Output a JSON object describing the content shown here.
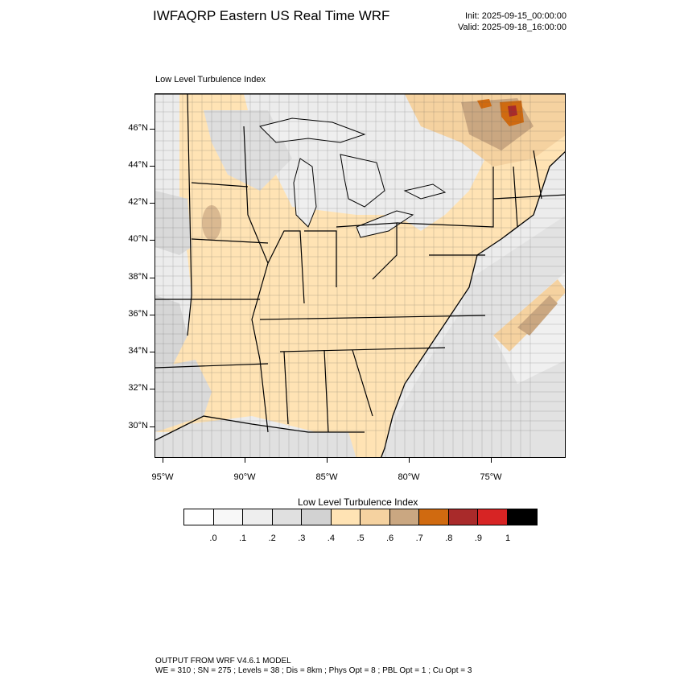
{
  "header": {
    "title": "IWFAQRP Eastern US Real Time WRF",
    "init": "Init: 2025-09-15_00:00:00",
    "valid": "Valid: 2025-09-18_16:00:00"
  },
  "map": {
    "title": "Low Level Turbulence Index",
    "lat_labels": [
      "46°N",
      "44°N",
      "42°N",
      "40°N",
      "38°N",
      "36°N",
      "34°N",
      "32°N",
      "30°N"
    ],
    "lon_labels": [
      "95°W",
      "90°W",
      "85°W",
      "80°W",
      "75°W"
    ]
  },
  "colorbar": {
    "title": "Low Level Turbulence Index",
    "colors": [
      "#ffffff",
      "#f8f8f8",
      "#eeeeee",
      "#e0e0e0",
      "#d2d2d2",
      "#ffe3b4",
      "#f5d2a0",
      "#caa781",
      "#d06a10",
      "#a92a2a",
      "#d72424",
      "#000000"
    ],
    "labels": [
      ".0",
      ".1",
      ".2",
      ".3",
      ".4",
      ".5",
      ".6",
      ".7",
      ".8",
      ".9",
      "1"
    ]
  },
  "footer": {
    "line1": "OUTPUT FROM WRF V4.6.1 MODEL",
    "line2": "WE = 310 ; SN = 275 ; Levels = 38 ; Dis = 8km ; Phys Opt = 8 ; PBL Opt = 1 ; Cu Opt = 3"
  }
}
